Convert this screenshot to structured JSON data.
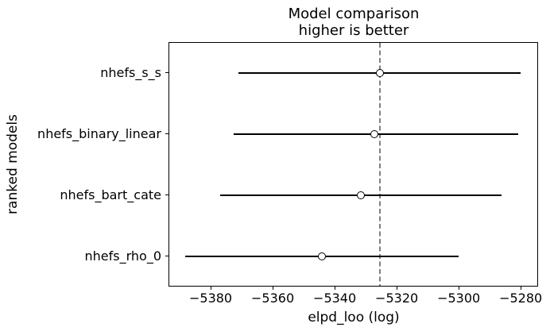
{
  "chart_data": {
    "type": "scatter",
    "variant": "horizontal-errorbar-forest (model comparison)",
    "title": "Model comparison",
    "subtitle": "higher is better",
    "xlabel": "elpd_loo (log)",
    "ylabel": "ranked models",
    "grid": false,
    "legend": false,
    "xlim": [
      -5393.6,
      -5274.4
    ],
    "xticks": [
      -5380,
      -5360,
      -5340,
      -5320,
      -5300,
      -5280
    ],
    "xtick_labels": [
      "−5380",
      "−5360",
      "−5340",
      "−5320",
      "−5300",
      "−5280"
    ],
    "categories": [
      "nhefs_s_s",
      "nhefs_binary_linear",
      "nhefs_bart_cate",
      "nhefs_rho_0"
    ],
    "points": [
      {
        "model": "nhefs_s_s",
        "elpd": -5325.4,
        "lower": -5371.0,
        "upper": -5280.0
      },
      {
        "model": "nhefs_binary_linear",
        "elpd": -5327.2,
        "lower": -5372.6,
        "upper": -5280.8
      },
      {
        "model": "nhefs_bart_cate",
        "elpd": -5331.5,
        "lower": -5376.9,
        "upper": -5286.2
      },
      {
        "model": "nhefs_rho_0",
        "elpd": -5344.1,
        "lower": -5388.2,
        "upper": -5300.0
      }
    ],
    "reference_line": {
      "x": -5325.4,
      "style": "dashed",
      "color": "#808080"
    },
    "colors": {
      "errorbar": "#000000",
      "marker_fill": "#ffffff",
      "marker_edge": "#000000",
      "spine": "#000000",
      "text": "#000000",
      "background": "#ffffff"
    }
  }
}
